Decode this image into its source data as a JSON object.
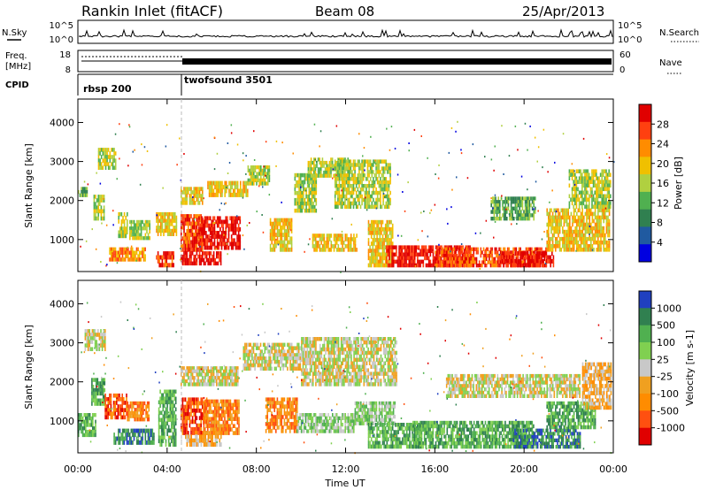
{
  "header": {
    "station": "Rankin Inlet (fitACF)",
    "beam": "Beam 08",
    "date": "25/Apr/2013"
  },
  "noise_panel": {
    "left_label": "N.Sky",
    "right_label": "N.Search",
    "left_ticks": [
      "10^5",
      "10^0"
    ],
    "right_ticks": [
      "10^5",
      "10^0"
    ]
  },
  "freq_panel": {
    "left_label_line1": "Freq.",
    "left_label_line2": "[MHz]",
    "right_label": "Nave",
    "left_ticks": [
      "18",
      "8"
    ],
    "right_ticks": [
      "60",
      "0"
    ]
  },
  "cpid_panel": {
    "label": "CPID",
    "modes": [
      {
        "name": "rbsp 200",
        "start_hour": 0.0,
        "end_hour": 4.55
      },
      {
        "name": "twofsound 3501",
        "start_hour": 4.55,
        "end_hour": 24.0
      }
    ]
  },
  "time_axis": {
    "label": "Time UT",
    "ticks": [
      "00:00",
      "04:00",
      "08:00",
      "12:00",
      "16:00",
      "20:00",
      "00:00"
    ]
  },
  "chart_data": [
    {
      "type": "heatmap",
      "title": "Power",
      "xlabel": "Time UT",
      "ylabel": "Slant Range [km]",
      "xlim": [
        0,
        24
      ],
      "ylim": [
        180,
        4600
      ],
      "yticks": [
        1000,
        2000,
        3000,
        4000
      ],
      "colorbar": {
        "label": "Power [dB]",
        "ticks": [
          "28",
          "24",
          "20",
          "16",
          "12",
          "8",
          "4"
        ],
        "colors": [
          "#e00000",
          "#ff4010",
          "#ff8c00",
          "#f0c000",
          "#b0d040",
          "#50b050",
          "#308050",
          "#205aa0",
          "#0000e0"
        ]
      },
      "regions": [
        {
          "t0": 0.0,
          "t1": 0.4,
          "r0": 2100,
          "r1": 2350,
          "level": 3
        },
        {
          "t0": 0.7,
          "t1": 1.2,
          "r0": 1500,
          "r1": 2150,
          "level": 4
        },
        {
          "t0": 0.9,
          "t1": 1.7,
          "r0": 2800,
          "r1": 3350,
          "level": 4
        },
        {
          "t0": 1.8,
          "t1": 2.2,
          "r0": 1050,
          "r1": 1700,
          "level": 4
        },
        {
          "t0": 2.3,
          "t1": 3.2,
          "r0": 1000,
          "r1": 1500,
          "level": 4
        },
        {
          "t0": 1.4,
          "t1": 3.0,
          "r0": 450,
          "r1": 800,
          "level": 6
        },
        {
          "t0": 3.5,
          "t1": 4.3,
          "r0": 300,
          "r1": 700,
          "level": 7
        },
        {
          "t0": 3.5,
          "t1": 4.4,
          "r0": 1100,
          "r1": 1700,
          "level": 5
        },
        {
          "t0": 4.6,
          "t1": 5.6,
          "r0": 700,
          "r1": 1650,
          "level": 7
        },
        {
          "t0": 5.4,
          "t1": 7.3,
          "r0": 750,
          "r1": 1600,
          "level": 8
        },
        {
          "t0": 4.6,
          "t1": 6.4,
          "r0": 350,
          "r1": 700,
          "level": 8
        },
        {
          "t0": 4.6,
          "t1": 5.6,
          "r0": 1900,
          "r1": 2350,
          "level": 5
        },
        {
          "t0": 5.8,
          "t1": 7.6,
          "r0": 2100,
          "r1": 2500,
          "level": 5
        },
        {
          "t0": 7.6,
          "t1": 8.6,
          "r0": 2400,
          "r1": 2900,
          "level": 4
        },
        {
          "t0": 8.6,
          "t1": 9.6,
          "r0": 700,
          "r1": 1550,
          "level": 5
        },
        {
          "t0": 9.7,
          "t1": 10.7,
          "r0": 1700,
          "r1": 2700,
          "level": 4
        },
        {
          "t0": 10.3,
          "t1": 12.2,
          "r0": 2600,
          "r1": 3100,
          "level": 4
        },
        {
          "t0": 11.5,
          "t1": 14.0,
          "r0": 1800,
          "r1": 3050,
          "level": 4
        },
        {
          "t0": 10.5,
          "t1": 12.5,
          "r0": 700,
          "r1": 1150,
          "level": 5
        },
        {
          "t0": 13.0,
          "t1": 14.1,
          "r0": 300,
          "r1": 1500,
          "level": 5
        },
        {
          "t0": 13.8,
          "t1": 17.6,
          "r0": 300,
          "r1": 850,
          "level": 8
        },
        {
          "t0": 16.0,
          "t1": 21.0,
          "r0": 300,
          "r1": 800,
          "level": 7
        },
        {
          "t0": 19.0,
          "t1": 21.3,
          "r0": 300,
          "r1": 700,
          "level": 8
        },
        {
          "t0": 18.5,
          "t1": 20.5,
          "r0": 1500,
          "r1": 2100,
          "level": 3
        },
        {
          "t0": 21.0,
          "t1": 23.8,
          "r0": 700,
          "r1": 1800,
          "level": 5
        },
        {
          "t0": 22.0,
          "t1": 23.9,
          "r0": 1800,
          "r1": 2800,
          "level": 4
        }
      ]
    },
    {
      "type": "heatmap",
      "title": "Velocity",
      "xlabel": "Time UT",
      "ylabel": "Slant Range [km]",
      "xlim": [
        0,
        24
      ],
      "ylim": [
        180,
        4600
      ],
      "yticks": [
        1000,
        2000,
        3000,
        4000
      ],
      "colorbar": {
        "label": "Velocity [m s-1]",
        "ticks": [
          "1000",
          "500",
          "100",
          "25",
          "-25",
          "-100",
          "-500",
          "-1000"
        ],
        "colors": [
          "#2040c0",
          "#308050",
          "#50b050",
          "#80d050",
          "#c8c8c8",
          "#f0a020",
          "#ff8c00",
          "#ff5010",
          "#e00000"
        ]
      },
      "regions": [
        {
          "t0": 0.3,
          "t1": 1.2,
          "r0": 2800,
          "r1": 3350,
          "level": 4
        },
        {
          "t0": 0.0,
          "t1": 0.8,
          "r0": 600,
          "r1": 1200,
          "level": 6
        },
        {
          "t0": 0.6,
          "t1": 1.2,
          "r0": 1400,
          "r1": 2100,
          "level": 6
        },
        {
          "t0": 1.2,
          "t1": 2.2,
          "r0": 1050,
          "r1": 1700,
          "level": 1
        },
        {
          "t0": 2.2,
          "t1": 3.2,
          "r0": 1000,
          "r1": 1500,
          "level": 2
        },
        {
          "t0": 1.6,
          "t1": 3.4,
          "r0": 400,
          "r1": 800,
          "level": 7
        },
        {
          "t0": 3.6,
          "t1": 4.4,
          "r0": 350,
          "r1": 1800,
          "level": 6
        },
        {
          "t0": 4.6,
          "t1": 5.8,
          "r0": 650,
          "r1": 1600,
          "level": 1
        },
        {
          "t0": 5.6,
          "t1": 7.2,
          "r0": 650,
          "r1": 1550,
          "level": 2
        },
        {
          "t0": 4.8,
          "t1": 6.4,
          "r0": 350,
          "r1": 650,
          "level": 3
        },
        {
          "t0": 4.6,
          "t1": 7.2,
          "r0": 1900,
          "r1": 2400,
          "level": 4
        },
        {
          "t0": 7.4,
          "t1": 10.0,
          "r0": 2300,
          "r1": 3000,
          "level": 4
        },
        {
          "t0": 8.4,
          "t1": 9.8,
          "r0": 700,
          "r1": 1600,
          "level": 2
        },
        {
          "t0": 10.0,
          "t1": 14.3,
          "r0": 1900,
          "r1": 3150,
          "level": 4
        },
        {
          "t0": 9.8,
          "t1": 12.4,
          "r0": 700,
          "r1": 1200,
          "level": 5
        },
        {
          "t0": 12.4,
          "t1": 14.2,
          "r0": 900,
          "r1": 1500,
          "level": 5
        },
        {
          "t0": 13.0,
          "t1": 15.4,
          "r0": 300,
          "r1": 950,
          "level": 6
        },
        {
          "t0": 15.0,
          "t1": 20.4,
          "r0": 300,
          "r1": 1000,
          "level": 6
        },
        {
          "t0": 19.5,
          "t1": 22.5,
          "r0": 300,
          "r1": 800,
          "level": 7
        },
        {
          "t0": 16.5,
          "t1": 22.5,
          "r0": 1600,
          "r1": 2200,
          "level": 4
        },
        {
          "t0": 21.0,
          "t1": 23.2,
          "r0": 800,
          "r1": 1500,
          "level": 6
        },
        {
          "t0": 22.6,
          "t1": 23.9,
          "r0": 1300,
          "r1": 2500,
          "level": 3
        }
      ]
    }
  ]
}
